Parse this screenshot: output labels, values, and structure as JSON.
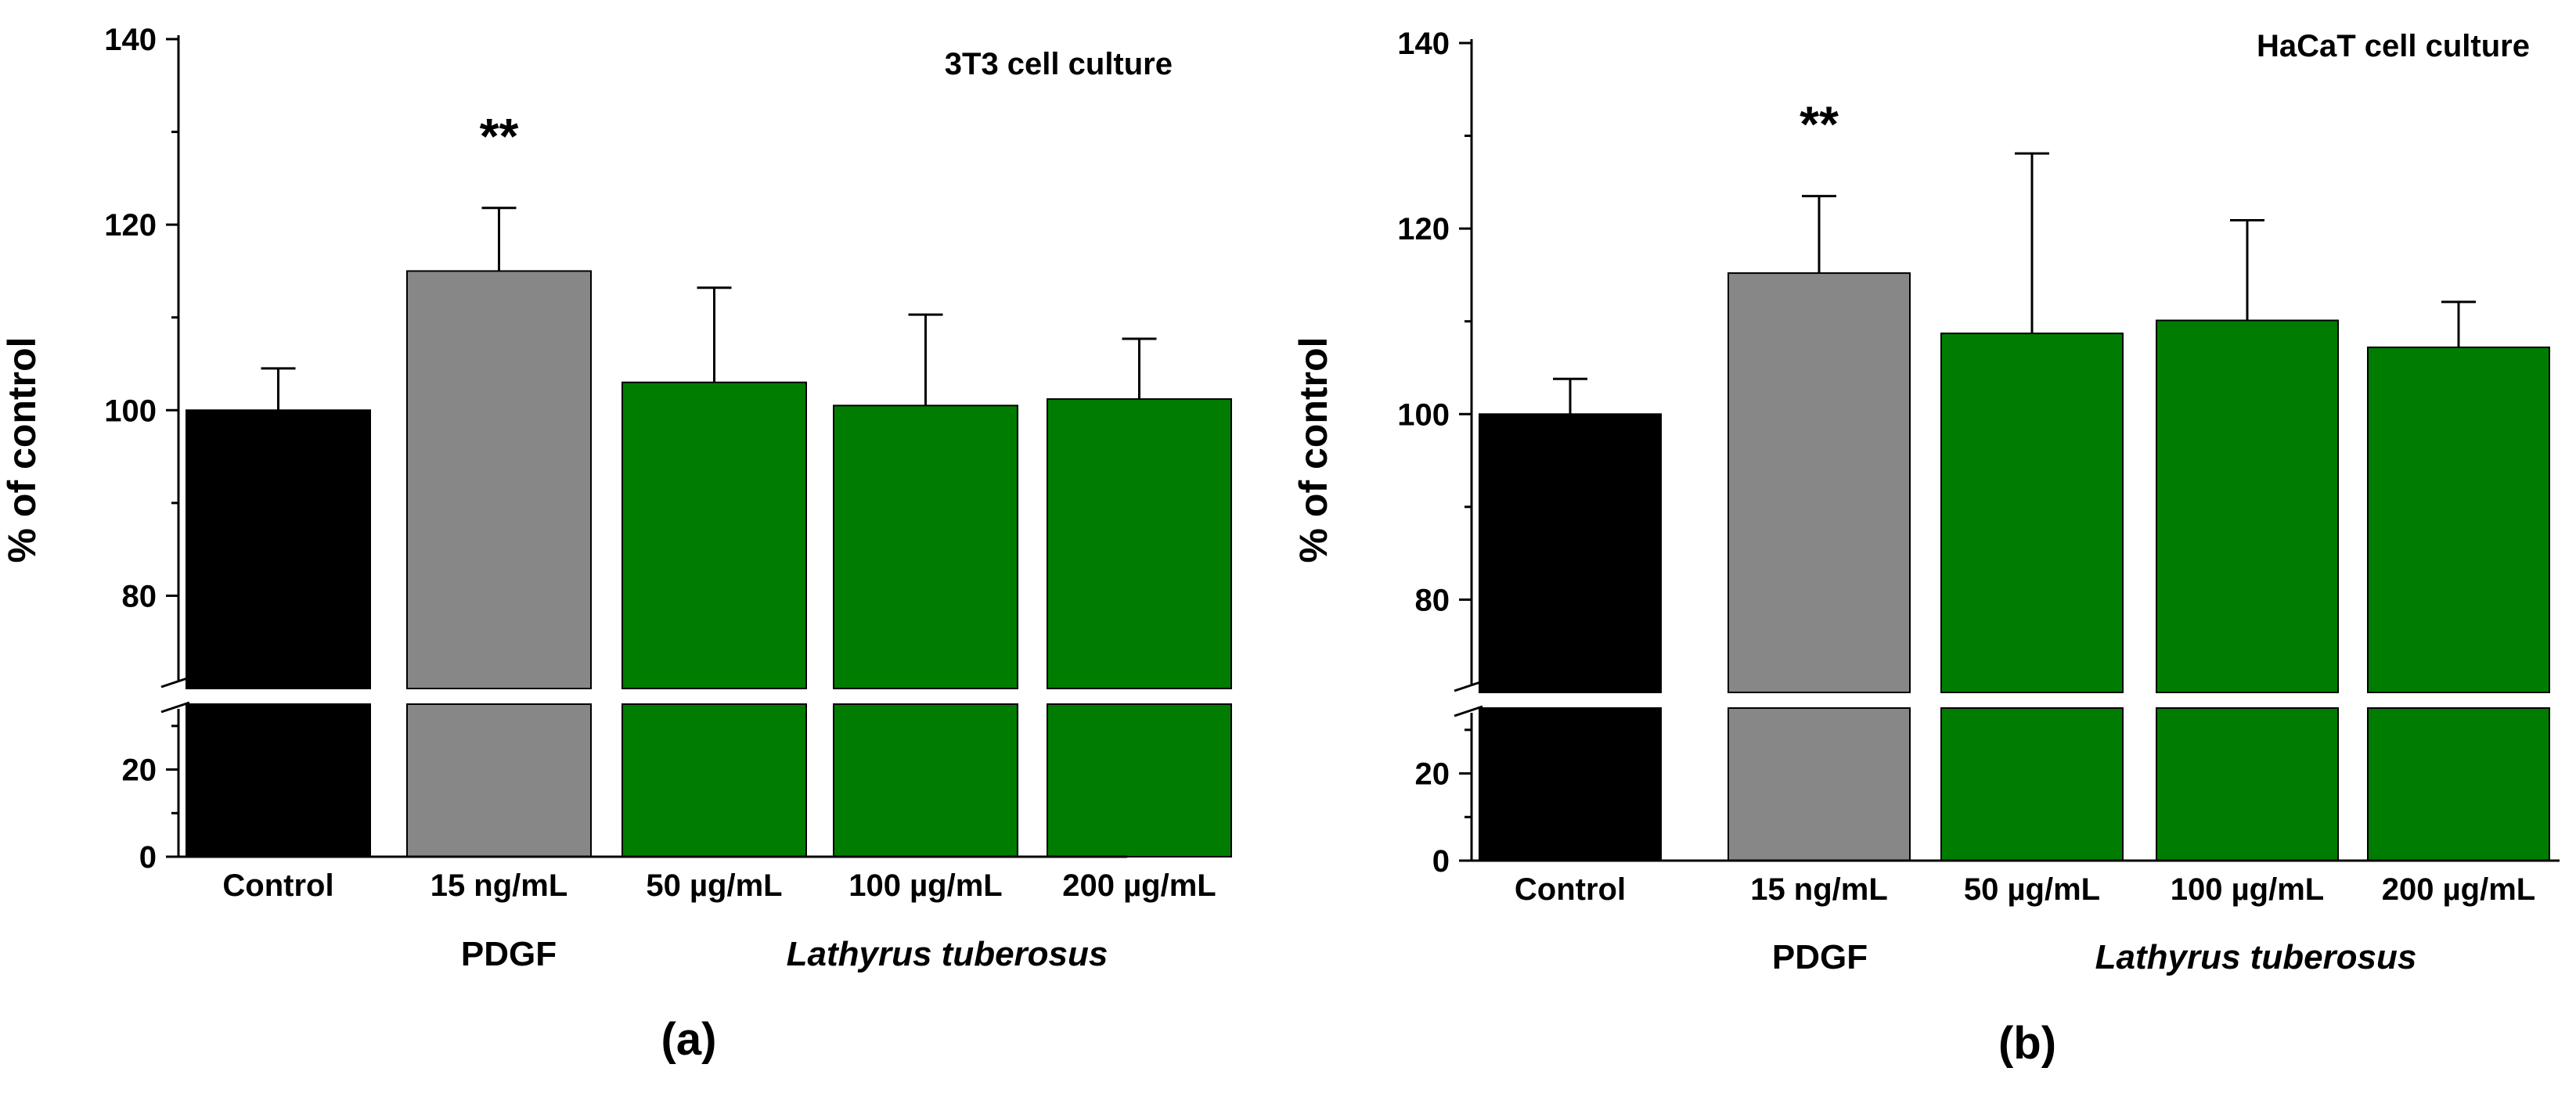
{
  "colors": {
    "control": "#000000",
    "pdgf": "#878787",
    "extract": "#007d00",
    "axis": "#000000",
    "background": "#ffffff"
  },
  "chart_data": [
    {
      "type": "bar",
      "title": "3T3 cell culture",
      "panel_label": "(a)",
      "ylabel": "% of control",
      "xlabel": "",
      "categories": [
        "Control",
        "15 ng/mL",
        "50 µg/mL",
        "100 µg/mL",
        "200 µg/mL"
      ],
      "values": [
        100,
        115,
        103,
        100.5,
        101.2
      ],
      "errors": [
        4.5,
        6.8,
        10.2,
        9.8,
        6.5
      ],
      "category_colors": [
        "control",
        "pdgf",
        "extract",
        "extract",
        "extract"
      ],
      "group_labels": [
        {
          "text": "PDGF",
          "italic": false,
          "categories": [
            1
          ]
        },
        {
          "text": "Lathyrus tuberosus",
          "italic": true,
          "categories": [
            2,
            3,
            4
          ]
        }
      ],
      "significance": [
        {
          "category": 1,
          "text": "**"
        }
      ],
      "axis_break": {
        "lower_range": [
          0,
          35
        ],
        "upper_range": [
          70,
          140
        ]
      },
      "yticks": [
        0,
        20,
        80,
        100,
        120,
        140
      ],
      "grid": false
    },
    {
      "type": "bar",
      "title": "HaCaT cell culture",
      "panel_label": "(b)",
      "ylabel": "% of control",
      "xlabel": "",
      "categories": [
        "Control",
        "15 ng/mL",
        "50 µg/mL",
        "100 µg/mL",
        "200 µg/mL"
      ],
      "values": [
        100,
        115.2,
        108.7,
        110.1,
        107.2
      ],
      "errors": [
        3.8,
        8.3,
        19.4,
        10.8,
        4.9
      ],
      "category_colors": [
        "control",
        "pdgf",
        "extract",
        "extract",
        "extract"
      ],
      "group_labels": [
        {
          "text": "PDGF",
          "italic": false,
          "categories": [
            1
          ]
        },
        {
          "text": "Lathyrus tuberosus",
          "italic": true,
          "categories": [
            2,
            3,
            4
          ]
        }
      ],
      "significance": [
        {
          "category": 1,
          "text": "**"
        }
      ],
      "axis_break": {
        "lower_range": [
          0,
          35
        ],
        "upper_range": [
          70,
          140
        ]
      },
      "yticks": [
        0,
        20,
        80,
        100,
        120,
        140
      ],
      "grid": false
    }
  ]
}
